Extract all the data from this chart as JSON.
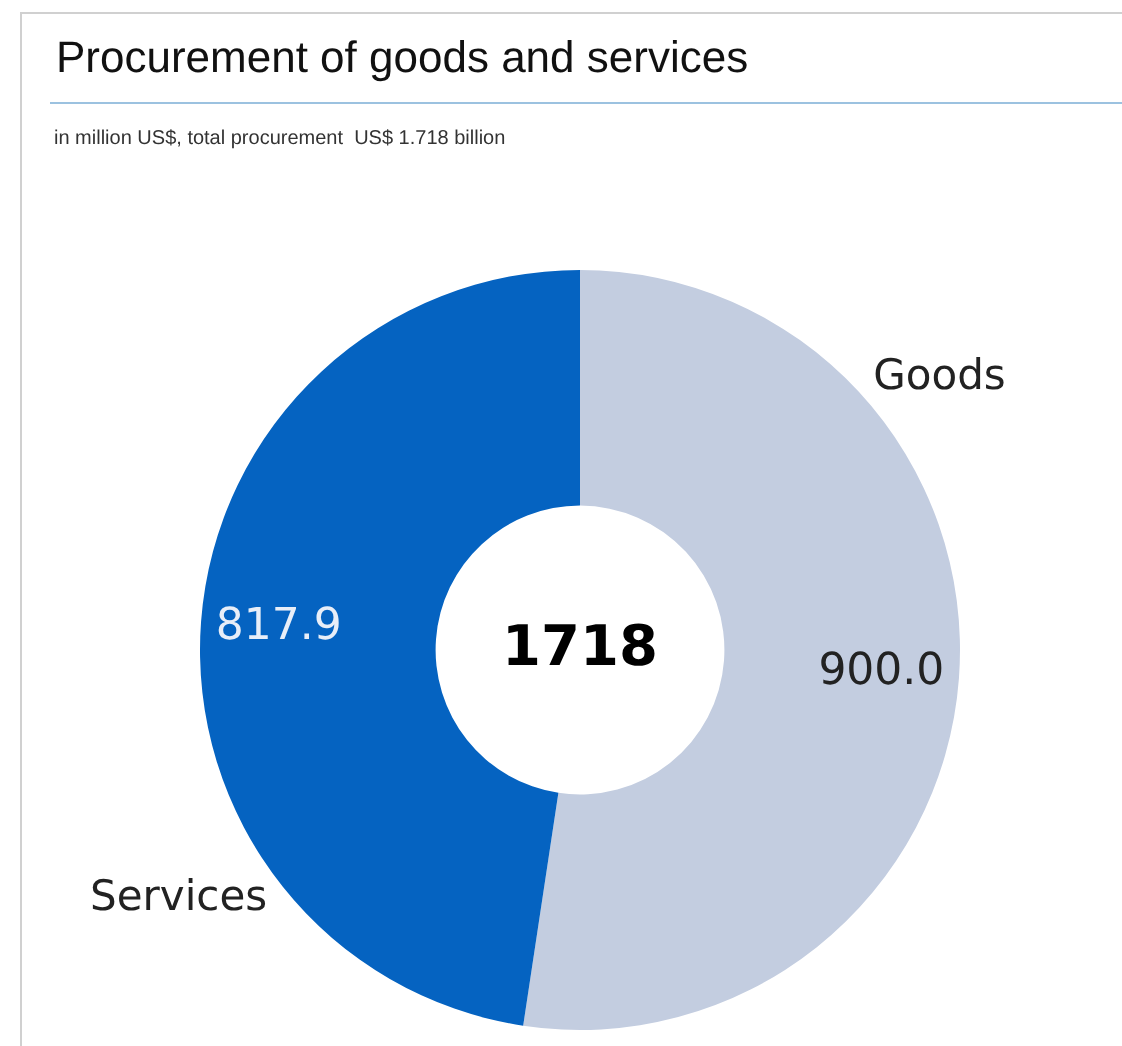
{
  "chart_data": {
    "type": "donut",
    "title": "Procurement of goods and services",
    "subtitle": "in million US$, total procurement  US$ 1.718 billion",
    "categories": [
      "Goods",
      "Services"
    ],
    "values": [
      900.0,
      817.9
    ],
    "value_labels": [
      "900.0",
      "817.9"
    ],
    "colors": [
      "#c3cde0",
      "#0563c1"
    ],
    "annotations": [
      "1718"
    ]
  }
}
